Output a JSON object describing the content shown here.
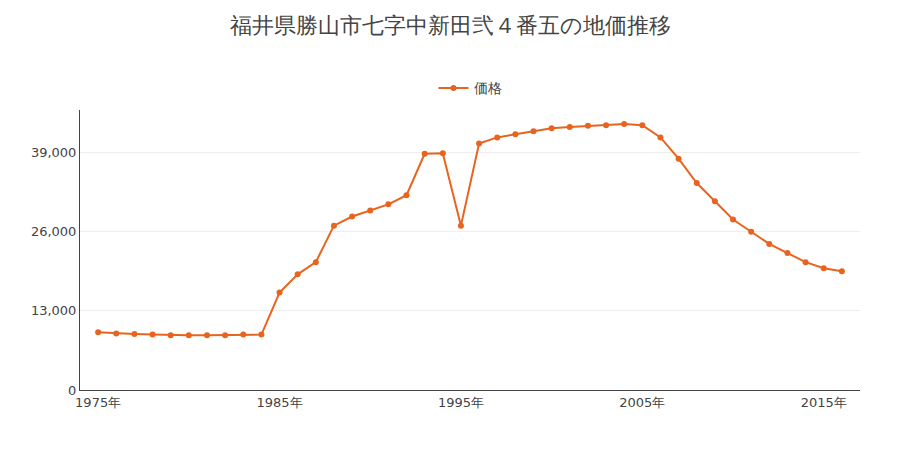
{
  "chart_data": {
    "type": "line",
    "title": "福井県勝山市七字中新田弐４番五の地価推移",
    "x": [
      1975,
      1976,
      1977,
      1978,
      1979,
      1980,
      1981,
      1982,
      1983,
      1984,
      1985,
      1986,
      1987,
      1988,
      1989,
      1990,
      1991,
      1992,
      1993,
      1994,
      1995,
      1996,
      1997,
      1998,
      1999,
      2000,
      2001,
      2002,
      2003,
      2004,
      2005,
      2006,
      2007,
      2008,
      2009,
      2010,
      2011,
      2012,
      2013,
      2014,
      2015,
      2016
    ],
    "series": [
      {
        "name": "価格",
        "color": "#e8641e",
        "marker": "o",
        "values": [
          9500,
          9300,
          9200,
          9100,
          9000,
          9000,
          9000,
          9000,
          9100,
          9100,
          16000,
          19000,
          21000,
          27000,
          28500,
          29500,
          30500,
          32000,
          38800,
          38900,
          27000,
          40500,
          41500,
          42000,
          42500,
          43000,
          43200,
          43400,
          43500,
          43700,
          43500,
          41500,
          38000,
          34000,
          31000,
          28000,
          26000,
          24000,
          22500,
          21000,
          20000,
          19500
        ]
      }
    ],
    "xlim": [
      1974,
      2017
    ],
    "ylim": [
      0,
      46000
    ],
    "xticks": [
      {
        "value": 1975,
        "label": "1975年"
      },
      {
        "value": 1985,
        "label": "1985年"
      },
      {
        "value": 1995,
        "label": "1995年"
      },
      {
        "value": 2005,
        "label": "2005年"
      },
      {
        "value": 2015,
        "label": "2015年"
      }
    ],
    "yticks": [
      0,
      {
        "value": 13000,
        "label": "13,000"
      },
      {
        "value": 26000,
        "label": "26,000"
      },
      {
        "value": 39000,
        "label": "39,000"
      }
    ],
    "grid": true,
    "legend": "top"
  }
}
